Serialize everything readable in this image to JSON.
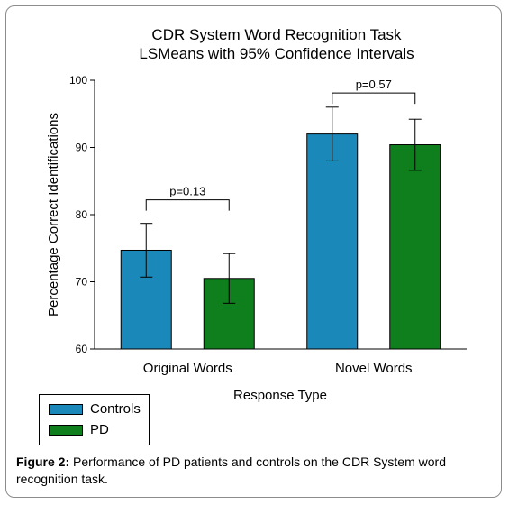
{
  "chart_data": {
    "type": "bar",
    "title": "CDR System Word Recognition Task",
    "subtitle": "LSMeans with 95% Confidence Intervals",
    "xlabel": "Response Type",
    "ylabel": "Percentage Correct Identifications",
    "ylim": [
      60,
      100
    ],
    "yticks": [
      "60",
      "70",
      "80",
      "90",
      "100"
    ],
    "categories": [
      "Original Words",
      "Novel Words"
    ],
    "series": [
      {
        "name": "Controls",
        "color": "#1a88b8",
        "values": [
          74.7,
          92.0
        ],
        "ci_low": [
          70.7,
          88.0
        ],
        "ci_high": [
          78.7,
          96.0
        ]
      },
      {
        "name": "PD",
        "color": "#0f7e1c",
        "values": [
          70.5,
          90.4
        ],
        "ci_low": [
          66.8,
          86.6
        ],
        "ci_high": [
          74.2,
          94.2
        ]
      }
    ],
    "annotations": [
      {
        "category": "Original Words",
        "text": "p=0.13",
        "y": 82.2
      },
      {
        "category": "Novel Words",
        "text": "p=0.57",
        "y": 98.1
      }
    ],
    "grid": false,
    "legend_position": "bottom-left"
  },
  "caption": {
    "label": "Figure 2:",
    "text": " Performance of PD patients and controls on the CDR System word recognition task."
  }
}
